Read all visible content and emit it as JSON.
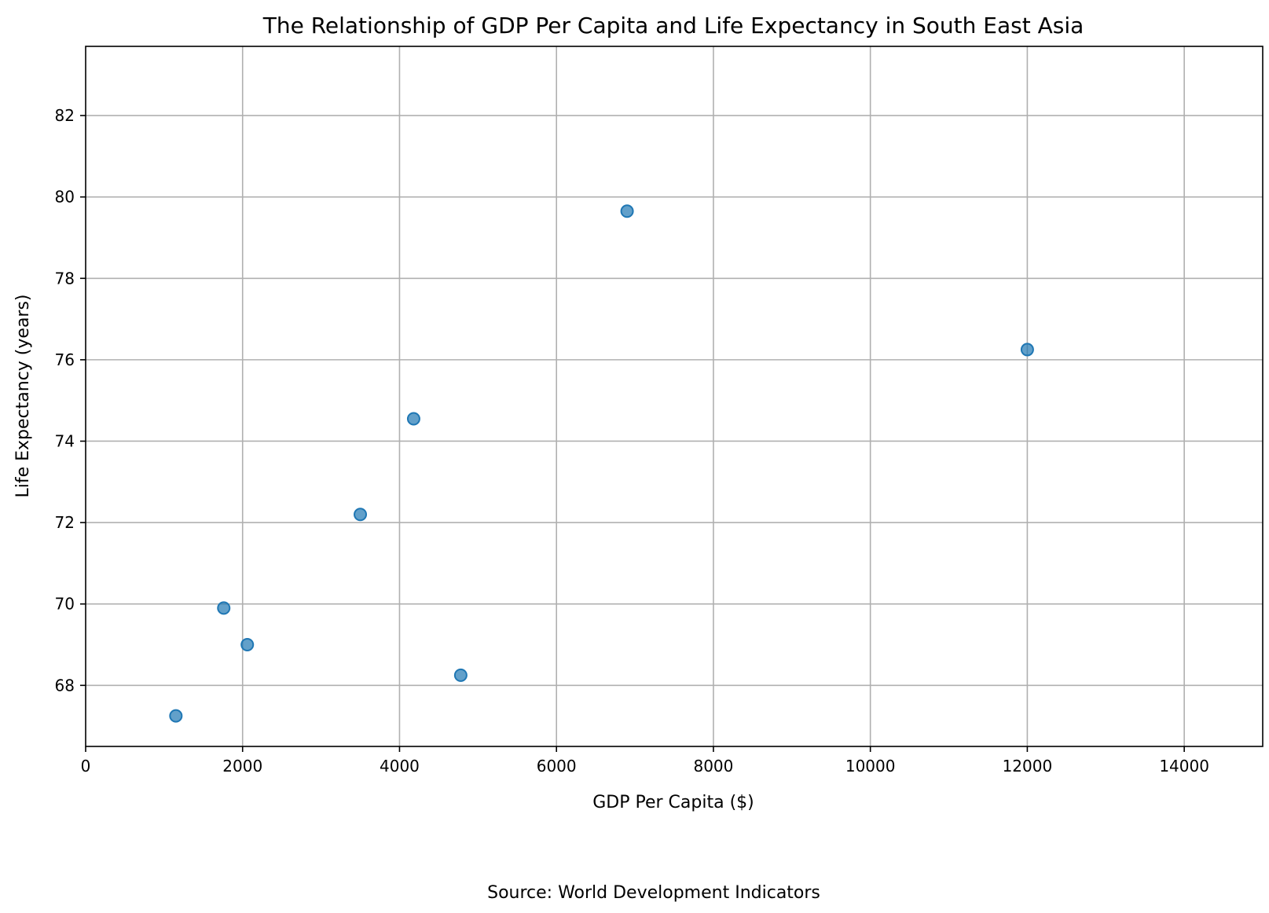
{
  "chart_data": {
    "type": "scatter",
    "title": "The Relationship of GDP Per Capita and Life Expectancy in South East Asia",
    "xlabel": "GDP Per Capita ($)",
    "ylabel": "Life Expectancy (years)",
    "caption": "Source: World Development Indicators",
    "xlim": [
      0,
      15000
    ],
    "ylim": [
      66.5,
      83.7
    ],
    "xticks": [
      0,
      2000,
      4000,
      6000,
      8000,
      10000,
      12000,
      14000
    ],
    "yticks": [
      68,
      70,
      72,
      74,
      76,
      78,
      80,
      82
    ],
    "grid": true,
    "point_color": "#1f77b4",
    "series": [
      {
        "points": [
          {
            "x": 1150,
            "y": 67.25
          },
          {
            "x": 1760,
            "y": 69.9
          },
          {
            "x": 2060,
            "y": 69.0
          },
          {
            "x": 3500,
            "y": 72.2
          },
          {
            "x": 4180,
            "y": 74.55
          },
          {
            "x": 4780,
            "y": 68.25
          },
          {
            "x": 6900,
            "y": 79.65
          },
          {
            "x": 12000,
            "y": 76.25
          }
        ]
      }
    ]
  }
}
